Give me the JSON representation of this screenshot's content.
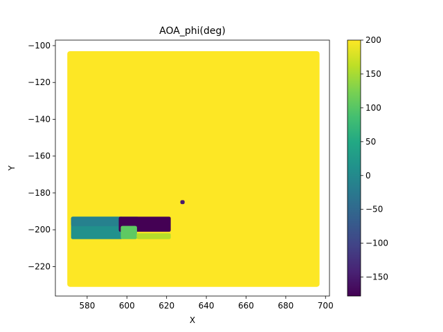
{
  "chart_data": {
    "type": "heatmap",
    "title": "AOA_phi(deg)",
    "xlabel": "X",
    "ylabel": "Y",
    "xlim": [
      564,
      702
    ],
    "ylim": [
      -236,
      -97
    ],
    "x_ticks": [
      "580",
      "600",
      "620",
      "640",
      "660",
      "680",
      "700"
    ],
    "y_ticks": [
      "−100",
      "−120",
      "−140",
      "−160",
      "−180",
      "−200",
      "−220"
    ],
    "x_tick_values": [
      580,
      600,
      620,
      640,
      660,
      680,
      700
    ],
    "y_tick_values": [
      -100,
      -120,
      -140,
      -160,
      -180,
      -200,
      -220
    ],
    "grid": false,
    "colormap": "viridis",
    "colorbar": {
      "range": [
        -178,
        200
      ],
      "ticks": [
        "200",
        "150",
        "100",
        "50",
        "0",
        "−50",
        "−100",
        "−150"
      ],
      "tick_values": [
        200,
        150,
        100,
        50,
        0,
        -50,
        -100,
        -150
      ]
    },
    "regions": [
      {
        "name": "background",
        "x": [
          570,
          697
        ],
        "y": [
          -231,
          -103
        ],
        "value": 200,
        "color": "#fde725"
      },
      {
        "name": "small dark patch",
        "x": [
          627,
          629
        ],
        "y": [
          -186,
          -184
        ],
        "value": -175,
        "color": "#481a6c"
      },
      {
        "name": "left block",
        "x": [
          572,
          598
        ],
        "y": [
          -205,
          -193
        ],
        "value": 15,
        "color": "#21918c"
      },
      {
        "name": "left block upper strip",
        "x": [
          572,
          606
        ],
        "y": [
          -198,
          -193
        ],
        "value": 0,
        "color": "#26818e"
      },
      {
        "name": "dark block",
        "x": [
          596,
          622
        ],
        "y": [
          -201,
          -193
        ],
        "value": -165,
        "color": "#440154"
      },
      {
        "name": "green block",
        "x": [
          597,
          605
        ],
        "y": [
          -205,
          -198
        ],
        "value": 115,
        "color": "#5ec962"
      },
      {
        "name": "light green strip",
        "x": [
          605,
          622
        ],
        "y": [
          -205,
          -202
        ],
        "value": 170,
        "color": "#b5de2b"
      }
    ]
  }
}
